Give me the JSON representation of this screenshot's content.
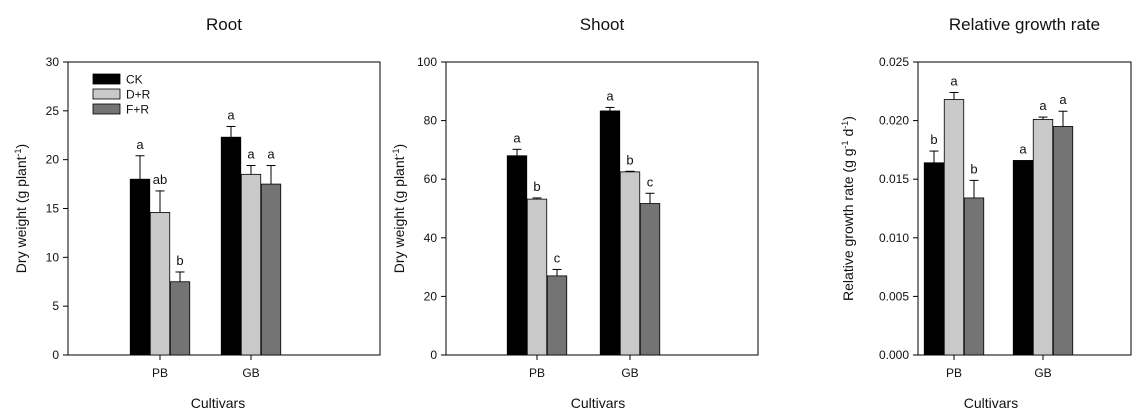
{
  "colors": {
    "CK": "#000000",
    "D+R": "#c9c9c9",
    "F+R": "#747474"
  },
  "chart_data": [
    {
      "type": "bar",
      "title": "Root",
      "xlabel": "Cultivars",
      "ylabel": "Dry weight (g plant-1)",
      "ylabel_parts": {
        "before": "Dry weight (g plant",
        "sup": "-1",
        "after": ")"
      },
      "ylim": [
        0,
        30
      ],
      "yticks": [
        0,
        5,
        10,
        15,
        20,
        25,
        30
      ],
      "ytick_labels": [
        "0",
        "5",
        "10",
        "15",
        "20",
        "25",
        "30"
      ],
      "categories": [
        "PB",
        "GB"
      ],
      "legend": {
        "show": true,
        "placement": "top-left"
      },
      "series": [
        {
          "name": "CK",
          "values": [
            18.0,
            22.3
          ],
          "errors": [
            2.4,
            1.1
          ],
          "labels": [
            "a",
            "a"
          ]
        },
        {
          "name": "D+R",
          "values": [
            14.6,
            18.5
          ],
          "errors": [
            2.2,
            0.9
          ],
          "labels": [
            "ab",
            "a"
          ]
        },
        {
          "name": "F+R",
          "values": [
            7.5,
            17.5
          ],
          "errors": [
            1.0,
            1.9
          ],
          "labels": [
            "b",
            "a"
          ]
        }
      ]
    },
    {
      "type": "bar",
      "title": "Shoot",
      "xlabel": "Cultivars",
      "ylabel": "Dry weight (g plant-1)",
      "ylabel_parts": {
        "before": "Dry weight (g plant",
        "sup": "-1",
        "after": ")"
      },
      "ylim": [
        0,
        100
      ],
      "yticks": [
        0,
        20,
        40,
        60,
        80,
        100
      ],
      "ytick_labels": [
        "0",
        "20",
        "40",
        "60",
        "80",
        "100"
      ],
      "categories": [
        "PB",
        "GB"
      ],
      "legend": {
        "show": false
      },
      "series": [
        {
          "name": "CK",
          "values": [
            68.0,
            83.3
          ],
          "errors": [
            2.2,
            1.2
          ],
          "labels": [
            "a",
            "a"
          ]
        },
        {
          "name": "D+R",
          "values": [
            53.2,
            62.5
          ],
          "errors": [
            0.4,
            0.2
          ],
          "labels": [
            "b",
            "b"
          ]
        },
        {
          "name": "F+R",
          "values": [
            27.0,
            51.7
          ],
          "errors": [
            2.2,
            3.5
          ],
          "labels": [
            "c",
            "c"
          ]
        }
      ]
    },
    {
      "type": "bar",
      "title": "Relative growth rate",
      "xlabel": "Cultivars",
      "ylabel": "Relative growth rate (g g-1 d-1)",
      "ylabel_parts": {
        "before": "Relative growth rate (g g",
        "sup": "-1",
        "mid": " d",
        "sup2": "-1",
        "after": ")"
      },
      "ylim": [
        0,
        0.025
      ],
      "yticks": [
        0,
        0.005,
        0.01,
        0.015,
        0.02,
        0.025
      ],
      "ytick_labels": [
        "0.000",
        "0.005",
        "0.010",
        "0.015",
        "0.020",
        "0.025"
      ],
      "categories": [
        "PB",
        "GB"
      ],
      "legend": {
        "show": false
      },
      "series": [
        {
          "name": "CK",
          "values": [
            0.0164,
            0.0166
          ],
          "errors": [
            0.001,
            0.0
          ],
          "labels": [
            "b",
            "a"
          ]
        },
        {
          "name": "D+R",
          "values": [
            0.0218,
            0.0201
          ],
          "errors": [
            0.0006,
            0.0002
          ],
          "labels": [
            "a",
            "a"
          ]
        },
        {
          "name": "F+R",
          "values": [
            0.0134,
            0.0195
          ],
          "errors": [
            0.0015,
            0.0013
          ],
          "labels": [
            "b",
            "a"
          ]
        }
      ]
    }
  ]
}
